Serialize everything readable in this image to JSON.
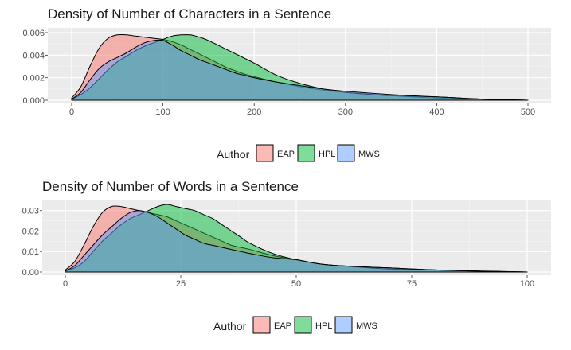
{
  "chart_data": [
    {
      "type": "area",
      "title": "Density of Number of Characters in a Sentence",
      "xlim": [
        0,
        500
      ],
      "ylim": [
        0,
        0.006
      ],
      "x_ticks": [
        0,
        100,
        200,
        300,
        400,
        500
      ],
      "y_ticks": [
        "0.000",
        "0.002",
        "0.004",
        "0.006"
      ],
      "y_tick_values": [
        0,
        0.002,
        0.004,
        0.006
      ],
      "grid": true,
      "legend": {
        "title": "Author",
        "placement": "bottom"
      },
      "series": [
        {
          "name": "EAP",
          "color": "#F8766D",
          "x": [
            0,
            10,
            20,
            30,
            40,
            50,
            60,
            70,
            80,
            90,
            100,
            110,
            120,
            130,
            140,
            150,
            160,
            170,
            180,
            190,
            200,
            225,
            250,
            275,
            300,
            350,
            400,
            450,
            500
          ],
          "y": [
            0.0002,
            0.0012,
            0.003,
            0.0046,
            0.0055,
            0.0058,
            0.0058,
            0.0057,
            0.0056,
            0.0055,
            0.0054,
            0.0052,
            0.0049,
            0.0045,
            0.0041,
            0.0037,
            0.0033,
            0.0029,
            0.0026,
            0.0023,
            0.0021,
            0.0016,
            0.0012,
            0.0009,
            0.0007,
            0.0004,
            0.0002,
            0.0001,
            0.0
          ]
        },
        {
          "name": "HPL",
          "color": "#00BA38",
          "x": [
            0,
            10,
            20,
            30,
            40,
            50,
            60,
            70,
            80,
            90,
            100,
            110,
            120,
            130,
            140,
            150,
            160,
            170,
            180,
            190,
            200,
            225,
            250,
            275,
            300,
            350,
            400,
            450,
            500
          ],
          "y": [
            0.0001,
            0.0005,
            0.0011,
            0.0019,
            0.0027,
            0.0034,
            0.0039,
            0.0044,
            0.0048,
            0.0051,
            0.0054,
            0.0057,
            0.0058,
            0.0058,
            0.0056,
            0.0053,
            0.0049,
            0.0045,
            0.0041,
            0.0037,
            0.0033,
            0.0022,
            0.0015,
            0.001,
            0.0007,
            0.0004,
            0.0003,
            0.0001,
            0.0
          ]
        },
        {
          "name": "MWS",
          "color": "#619CFF",
          "x": [
            0,
            10,
            20,
            30,
            40,
            50,
            60,
            70,
            80,
            90,
            100,
            110,
            120,
            130,
            140,
            150,
            160,
            170,
            180,
            190,
            200,
            225,
            250,
            275,
            300,
            350,
            400,
            450,
            500
          ],
          "y": [
            0.0001,
            0.0007,
            0.0018,
            0.0028,
            0.0034,
            0.0038,
            0.0042,
            0.0047,
            0.0051,
            0.0053,
            0.0053,
            0.0049,
            0.0044,
            0.004,
            0.0036,
            0.0033,
            0.003,
            0.0027,
            0.0024,
            0.0022,
            0.002,
            0.0016,
            0.0013,
            0.001,
            0.0008,
            0.0005,
            0.0003,
            0.0001,
            0.0
          ]
        }
      ]
    },
    {
      "type": "area",
      "title": "Density of Number of Words in a Sentence",
      "xlim": [
        0,
        100
      ],
      "ylim": [
        0,
        0.033
      ],
      "x_ticks": [
        0,
        25,
        50,
        75,
        100
      ],
      "y_ticks": [
        "0.00",
        "0.01",
        "0.02",
        "0.03"
      ],
      "y_tick_values": [
        0,
        0.01,
        0.02,
        0.03
      ],
      "grid": true,
      "legend": {
        "title": "Author",
        "placement": "bottom"
      },
      "series": [
        {
          "name": "EAP",
          "color": "#F8766D",
          "x": [
            0,
            2,
            4,
            6,
            8,
            10,
            12,
            14,
            16,
            18,
            20,
            22,
            24,
            26,
            28,
            30,
            32,
            34,
            36,
            38,
            40,
            45,
            50,
            55,
            60,
            70,
            80,
            90,
            100
          ],
          "y": [
            0.001,
            0.005,
            0.013,
            0.022,
            0.029,
            0.032,
            0.032,
            0.031,
            0.03,
            0.029,
            0.028,
            0.027,
            0.025,
            0.023,
            0.021,
            0.019,
            0.017,
            0.015,
            0.013,
            0.012,
            0.011,
            0.008,
            0.006,
            0.004,
            0.003,
            0.002,
            0.001,
            0.0005,
            0.0
          ]
        },
        {
          "name": "HPL",
          "color": "#00BA38",
          "x": [
            0,
            2,
            4,
            6,
            8,
            10,
            12,
            14,
            16,
            18,
            20,
            22,
            24,
            26,
            28,
            30,
            32,
            34,
            36,
            38,
            40,
            45,
            50,
            55,
            60,
            70,
            80,
            90,
            100
          ],
          "y": [
            0.0005,
            0.002,
            0.005,
            0.01,
            0.015,
            0.019,
            0.023,
            0.026,
            0.028,
            0.03,
            0.032,
            0.033,
            0.032,
            0.031,
            0.03,
            0.028,
            0.026,
            0.023,
            0.02,
            0.017,
            0.014,
            0.009,
            0.006,
            0.004,
            0.003,
            0.0015,
            0.001,
            0.0004,
            0.0
          ]
        },
        {
          "name": "MWS",
          "color": "#619CFF",
          "x": [
            0,
            2,
            4,
            6,
            8,
            10,
            12,
            14,
            16,
            18,
            20,
            22,
            24,
            26,
            28,
            30,
            32,
            34,
            36,
            38,
            40,
            45,
            50,
            55,
            60,
            70,
            80,
            90,
            100
          ],
          "y": [
            0.0005,
            0.003,
            0.008,
            0.013,
            0.018,
            0.022,
            0.026,
            0.029,
            0.03,
            0.029,
            0.027,
            0.024,
            0.021,
            0.018,
            0.016,
            0.014,
            0.013,
            0.012,
            0.011,
            0.01,
            0.009,
            0.007,
            0.006,
            0.004,
            0.003,
            0.002,
            0.001,
            0.0004,
            0.0
          ]
        }
      ]
    }
  ]
}
